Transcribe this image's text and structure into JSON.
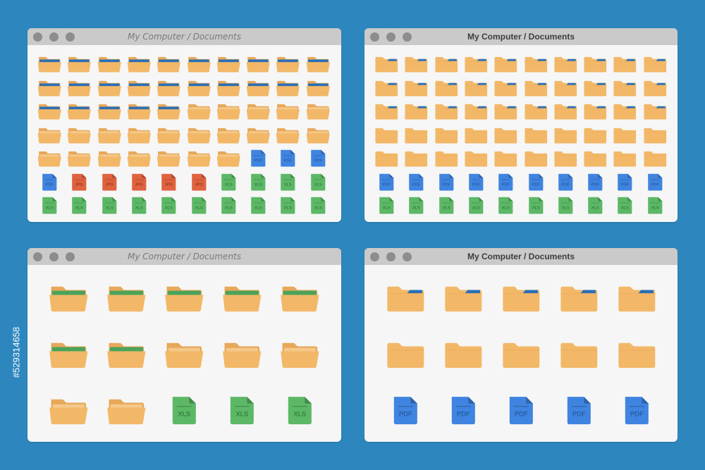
{
  "background": "#2d87be",
  "side_label": "#529314658",
  "colors": {
    "folder": "#f2b868",
    "folder_back": "#e7a85a",
    "tab_blue": "#2a6fb6",
    "tab_green": "#4aa35a",
    "pdf": "#3f84e0",
    "jpg": "#e0623f",
    "xls": "#5cb866"
  },
  "windows": [
    {
      "title": "My Computer / Documents",
      "title_style": "italic",
      "rows": [
        [
          "folder-blue",
          "folder-blue",
          "folder-blue",
          "folder-blue",
          "folder-blue",
          "folder-blue",
          "folder-blue",
          "folder-blue",
          "folder-blue",
          "folder-blue"
        ],
        [
          "folder-blue",
          "folder-blue",
          "folder-blue",
          "folder-blue",
          "folder-blue",
          "folder-blue",
          "folder-blue",
          "folder-blue",
          "folder-blue",
          "folder-blue"
        ],
        [
          "folder-blue",
          "folder-blue",
          "folder-blue",
          "folder-blue",
          "folder-blue",
          "folder-open",
          "folder-open",
          "folder-open",
          "folder-open",
          "folder-open"
        ],
        [
          "folder-open",
          "folder-open",
          "folder-open",
          "folder-open",
          "folder-open",
          "folder-open",
          "folder-open",
          "folder-open",
          "folder-open",
          "folder-open"
        ],
        [
          "folder-open",
          "folder-open",
          "folder-open",
          "folder-open",
          "folder-open",
          "folder-open",
          "folder-open",
          "PDF",
          "PDF",
          "PDF"
        ],
        [
          "PDF",
          "JPG",
          "JPG",
          "JPG",
          "JPG",
          "JPG",
          "XLS",
          "XLS",
          "XLS",
          "XLS"
        ],
        [
          "XLS",
          "XLS",
          "XLS",
          "XLS",
          "XLS",
          "XLS",
          "XLS",
          "XLS",
          "XLS",
          "XLS"
        ]
      ]
    },
    {
      "title": "My Computer / Documents",
      "title_style": "bold",
      "rows": [
        [
          "folder-tab",
          "folder-tab",
          "folder-tab",
          "folder-tab",
          "folder-tab",
          "folder-tab",
          "folder-tab",
          "folder-tab",
          "folder-tab",
          "folder-tab"
        ],
        [
          "folder-tab",
          "folder-tab",
          "folder-tab",
          "folder-tab",
          "folder-tab",
          "folder-tab",
          "folder-tab",
          "folder-tab",
          "folder-tab",
          "folder-tab"
        ],
        [
          "folder-tab",
          "folder-tab",
          "folder-tab",
          "folder-tab",
          "folder-tab",
          "folder-tab",
          "folder-tab",
          "folder-tab",
          "folder-tab",
          "folder-tab"
        ],
        [
          "folder-closed",
          "folder-closed",
          "folder-closed",
          "folder-closed",
          "folder-closed",
          "folder-closed",
          "folder-closed",
          "folder-closed",
          "folder-closed",
          "folder-closed"
        ],
        [
          "folder-closed",
          "folder-closed",
          "folder-closed",
          "folder-closed",
          "folder-closed",
          "folder-closed",
          "folder-closed",
          "folder-closed",
          "folder-closed",
          "folder-closed"
        ],
        [
          "PDF",
          "PDF",
          "PDF",
          "PDF",
          "PDF",
          "PDF",
          "PDF",
          "PDF",
          "PDF",
          "PDF"
        ],
        [
          "XLS",
          "XLS",
          "XLS",
          "XLS",
          "XLS",
          "XLS",
          "XLS",
          "XLS",
          "XLS",
          "XLS"
        ]
      ]
    },
    {
      "title": "My Computer / Documents",
      "title_style": "italic",
      "rows": [
        [
          "folder-green",
          "folder-green",
          "folder-green",
          "folder-green",
          "folder-green"
        ],
        [
          "folder-green",
          "folder-green",
          "folder-open",
          "folder-open",
          "folder-open"
        ],
        [
          "folder-open",
          "folder-open",
          "XLS",
          "XLS",
          "XLS"
        ]
      ]
    },
    {
      "title": "My Computer / Documents",
      "title_style": "bold",
      "rows": [
        [
          "folder-tab",
          "folder-tab",
          "folder-tab",
          "folder-tab",
          "folder-tab"
        ],
        [
          "folder-closed",
          "folder-closed",
          "folder-closed",
          "folder-closed",
          "folder-closed"
        ],
        [
          "PDF",
          "PDF",
          "PDF",
          "PDF",
          "PDF"
        ]
      ]
    }
  ]
}
